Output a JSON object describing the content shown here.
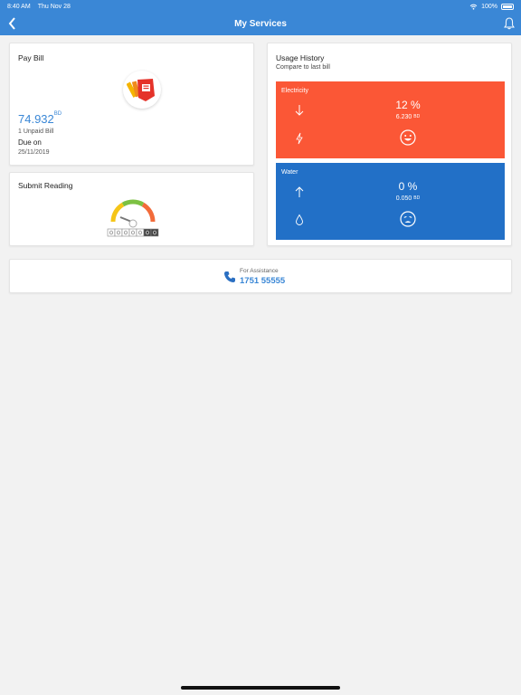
{
  "status": {
    "time": "8:40 AM",
    "date": "Thu Nov 28",
    "battery": "100%"
  },
  "header": {
    "title": "My Services"
  },
  "pay_bill": {
    "title": "Pay Bill",
    "amount": "74.932",
    "currency": "BD",
    "unpaid": "1 Unpaid Bill",
    "due_label": "Due on",
    "due_date": "25/11/2019"
  },
  "submit_reading": {
    "title": "Submit Reading"
  },
  "usage_history": {
    "title": "Usage History",
    "subtitle": "Compare to last bill",
    "electricity": {
      "label": "Electricity",
      "percent": "12 %",
      "amount": "6.230",
      "currency": "BD",
      "trend": "down",
      "mood": "happy",
      "color": "#fb5736"
    },
    "water": {
      "label": "Water",
      "percent": "0 %",
      "amount": "0.050",
      "currency": "BD",
      "trend": "up",
      "mood": "sad",
      "color": "#2270c7"
    }
  },
  "assistance": {
    "label": "For Assistance",
    "phone": "1751 55555"
  },
  "colors": {
    "primary": "#3a87d6",
    "background": "#f2f2f2"
  }
}
